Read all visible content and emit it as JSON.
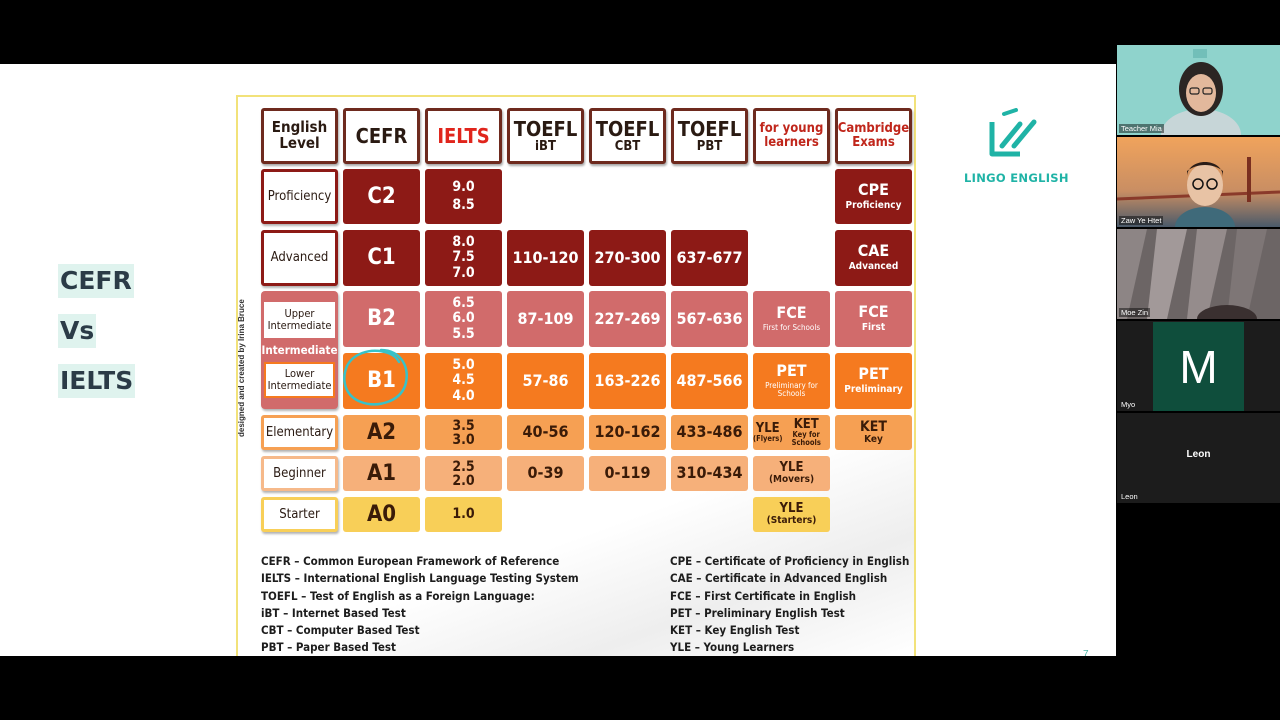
{
  "slide": {
    "side_title": [
      "CEFR",
      "Vs",
      "IELTS"
    ],
    "logo_text": "LINGO ENGLISH",
    "page_number": "7"
  },
  "chart": {
    "headers": [
      {
        "line1": "English",
        "line2": "Level"
      },
      {
        "line1": "CEFR",
        "line2": ""
      },
      {
        "line1": "IELTS",
        "line2": ""
      },
      {
        "line1": "TOEFL",
        "line2": "iBT"
      },
      {
        "line1": "TOEFL",
        "line2": "CBT"
      },
      {
        "line1": "TOEFL",
        "line2": "PBT"
      },
      {
        "line1": "for young",
        "line2": "learners"
      },
      {
        "line1": "Cambridge",
        "line2": "Exams"
      }
    ],
    "levels": {
      "proficiency": "Proficiency",
      "advanced": "Advanced",
      "upper": "Upper Intermediate",
      "intermediate": "Intermediate",
      "lower": "Lower Intermediate",
      "elementary": "Elementary",
      "beginner": "Beginner",
      "starter": "Starter"
    },
    "cefr": {
      "c2": "C2",
      "c1": "C1",
      "b2": "B2",
      "b1": "B1",
      "a2": "A2",
      "a1": "A1",
      "a0": "A0"
    },
    "ielts": {
      "c2": "9.0 8.5",
      "c1": "8.0 7.5 7.0",
      "b2": "6.5 6.0 5.5",
      "b1": "5.0 4.5 4.0",
      "a2": "3.5 3.0",
      "a1": "2.5 2.0",
      "a0": "1.0"
    },
    "toefl_ibt": {
      "c1": "110-120",
      "b2": "87-109",
      "b1": "57-86",
      "a2": "40-56",
      "a1": "0-39"
    },
    "toefl_cbt": {
      "c1": "270-300",
      "b2": "227-269",
      "b1": "163-226",
      "a2": "120-162",
      "a1": "0-119"
    },
    "toefl_pbt": {
      "c1": "637-677",
      "b2": "567-636",
      "b1": "487-566",
      "a2": "433-486",
      "a1": "310-434"
    },
    "young": {
      "fce": "FCE",
      "fce_sub": "First for Schools",
      "pet": "PET",
      "pet_sub": "Preliminary for Schools",
      "yle": "YLE",
      "yle_flyers": "(Flyers)",
      "ket": "KET",
      "ket_sub": "Key for Schools",
      "movers": "(Movers)",
      "starters": "(Starters)"
    },
    "cambridge": {
      "cpe": "CPE",
      "cpe_sub": "Proficiency",
      "cae": "CAE",
      "cae_sub": "Advanced",
      "fce": "FCE",
      "fce_sub": "First",
      "pet": "PET",
      "pet_sub": "Preliminary",
      "ket": "KET",
      "ket_sub": "Key"
    },
    "credit": "designed and created by Irina Bruce",
    "legend_left": [
      "CEFR – Common European Framework of Reference",
      "IELTS – International English Language Testing System",
      "TOEFL – Test of English as a Foreign Language:",
      "iBT – Internet Based Test",
      "CBT – Computer Based Test",
      "PBT – Paper Based Test"
    ],
    "legend_right": [
      "CPE – Certificate of Proficiency in English",
      "CAE – Certificate in Advanced English",
      "FCE – First Certificate in English",
      "PET – Preliminary English Test",
      "KET – Key English Test",
      "YLE – Young Learners"
    ]
  },
  "participants": [
    {
      "name": "Teacher Mia"
    },
    {
      "name": "Zaw Ye Htet"
    },
    {
      "name": "Moe Zin"
    },
    {
      "name": "Myo",
      "initial": "M"
    },
    {
      "name": "Leon",
      "display": "Leon"
    }
  ],
  "colors": {
    "accent": "#1fb3a6",
    "dark_red": "#8d1a16",
    "orange": "#f57a1f",
    "yellow": "#f8cf58"
  }
}
